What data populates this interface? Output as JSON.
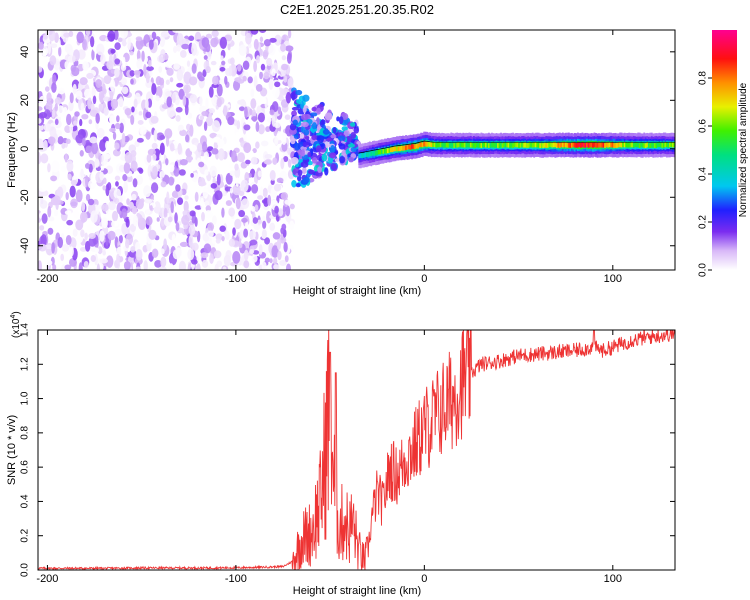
{
  "title": "C2E1.2025.251.20.35.R02",
  "chart_data": [
    {
      "type": "heatmap",
      "xlabel": "Height of straight line (km)",
      "ylabel": "Frequency (Hz)",
      "xlim": [
        -205,
        133
      ],
      "ylim": [
        -50,
        49
      ],
      "x_ticks": [
        -200,
        -100,
        0,
        100
      ],
      "x_tick_labels": [
        "-200",
        "-100",
        "0",
        "100"
      ],
      "y_ticks": [
        -40,
        -20,
        0,
        20,
        40
      ],
      "y_tick_labels": [
        "-40",
        "-20",
        "0",
        "20",
        "40"
      ],
      "colorbar": {
        "label": "Normalized spectral amplitude",
        "range": [
          0,
          1
        ],
        "ticks": [
          0.0,
          0.2,
          0.4,
          0.6,
          0.8
        ],
        "tick_labels": [
          "0.0",
          "0.2",
          "0.4",
          "0.6",
          "0.8"
        ],
        "colormap": "rainbow (white-purple-blue-cyan-green-yellow-red-magenta)"
      },
      "regions": [
        {
          "x_range": [
            -205,
            -70
          ],
          "description": "broadband noise",
          "amplitude_range": [
            0.0,
            0.15
          ],
          "freq_range": [
            -50,
            49
          ]
        },
        {
          "x_range": [
            -70,
            -35
          ],
          "description": "transition scatter",
          "amplitude_range": [
            0.05,
            0.4
          ],
          "center_freq": [
            0,
            8
          ]
        },
        {
          "x_range": [
            -35,
            133
          ],
          "description": "narrowband signal",
          "amplitude_range": [
            0.3,
            1.0
          ],
          "center_freq": 1.5
        }
      ],
      "ridge": {
        "x": [
          -35,
          -25,
          -15,
          -5,
          0,
          5,
          10,
          20,
          40,
          60,
          80,
          90,
          100,
          110,
          120,
          133
        ],
        "freq": [
          -3,
          -1.5,
          0,
          1,
          2,
          1.5,
          1.5,
          1.5,
          1.5,
          1.5,
          1.5,
          1.5,
          1.5,
          1.5,
          1.5,
          1.5
        ],
        "amplitude": [
          0.35,
          0.55,
          0.7,
          0.85,
          0.8,
          0.6,
          0.55,
          0.6,
          0.6,
          0.65,
          0.85,
          0.9,
          0.75,
          0.6,
          0.6,
          0.6
        ]
      }
    },
    {
      "type": "line",
      "xlabel": "Height of straight line (km)",
      "ylabel": "SNR (10 * v/v)",
      "y_multiplier": "(x10",
      "y_multiplier_exp": "4",
      "y_multiplier_close": ")",
      "xlim": [
        -205,
        133
      ],
      "ylim": [
        0,
        1.4
      ],
      "x_ticks": [
        -200,
        -100,
        0,
        100
      ],
      "x_tick_labels": [
        "-200",
        "-100",
        "0",
        "100"
      ],
      "y_ticks": [
        0.0,
        0.2,
        0.4,
        0.6,
        0.8,
        1.0,
        1.2,
        1.4
      ],
      "y_tick_labels": [
        "0.0",
        "0.2",
        "0.4",
        "0.6",
        "0.8",
        "1.0",
        "1.2",
        "1.4"
      ],
      "color": "#ee3333",
      "series": [
        {
          "name": "SNR",
          "x": [
            -205,
            -190,
            -170,
            -150,
            -130,
            -110,
            -90,
            -75,
            -70,
            -65,
            -60,
            -55,
            -52,
            -50,
            -48,
            -45,
            -42,
            -40,
            -38,
            -35,
            -32,
            -30,
            -28,
            -25,
            -22,
            -20,
            -18,
            -15,
            -12,
            -10,
            -5,
            0,
            5,
            10,
            15,
            20,
            25,
            30,
            40,
            50,
            60,
            70,
            80,
            90,
            95,
            100,
            110,
            120,
            133
          ],
          "y": [
            0.01,
            0.01,
            0.01,
            0.012,
            0.012,
            0.012,
            0.015,
            0.02,
            0.05,
            0.18,
            0.22,
            0.4,
            0.75,
            1.1,
            0.5,
            0.25,
            0.3,
            0.22,
            0.28,
            0.12,
            0.06,
            0.1,
            0.3,
            0.45,
            0.38,
            0.5,
            0.6,
            0.55,
            0.6,
            0.65,
            0.72,
            0.82,
            0.88,
            0.95,
            1.0,
            1.1,
            1.15,
            1.2,
            1.22,
            1.25,
            1.26,
            1.27,
            1.28,
            1.3,
            1.28,
            1.3,
            1.34,
            1.36,
            1.38
          ]
        }
      ],
      "spikes": [
        {
          "x": -50,
          "y": 1.27
        },
        {
          "x": -47,
          "y": 1.15
        },
        {
          "x": 90,
          "y": 1.4
        }
      ]
    }
  ]
}
